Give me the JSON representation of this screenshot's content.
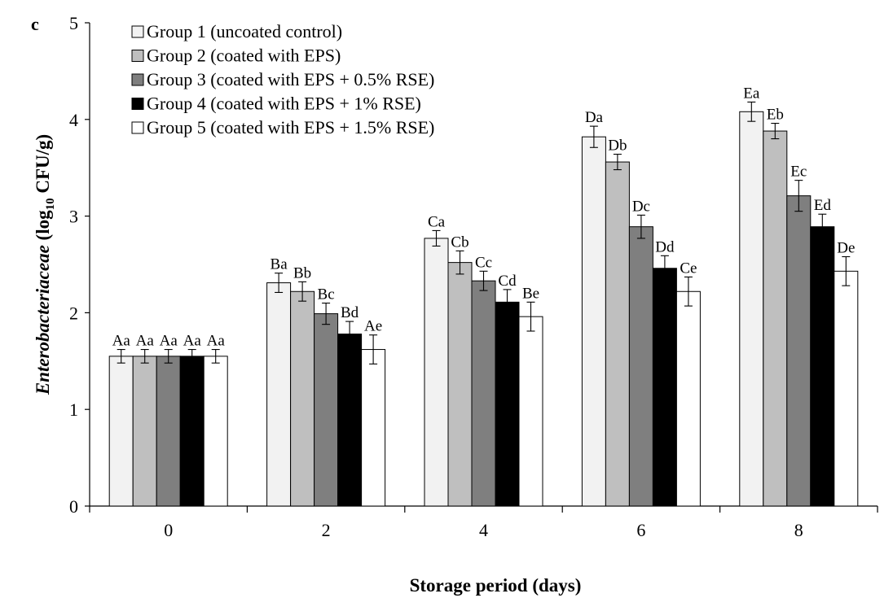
{
  "panel_label": "c",
  "chart_data": {
    "type": "bar",
    "xlabel": "Storage period (days)",
    "ylabel_italic": "Enterobacteriaceae",
    "ylabel_rest": "(log",
    "ylabel_sub": "10",
    "ylabel_end": "CFU/g)",
    "ylim": [
      0,
      5
    ],
    "yticks": [
      "0",
      "1",
      "2",
      "3",
      "4",
      "5"
    ],
    "categories": [
      "0",
      "2",
      "4",
      "6",
      "8"
    ],
    "series": [
      {
        "name": "Group 1 (uncoated control)",
        "color": "#f2f2f2",
        "values": [
          1.55,
          2.31,
          2.77,
          3.82,
          4.08
        ],
        "errors": [
          0.07,
          0.1,
          0.08,
          0.11,
          0.1
        ],
        "labels": [
          "Aa",
          "Ba",
          "Ca",
          "Da",
          "Ea"
        ]
      },
      {
        "name": "Group 2 (coated with EPS)",
        "color": "#bfbfbf",
        "values": [
          1.55,
          2.22,
          2.52,
          3.56,
          3.88
        ],
        "errors": [
          0.07,
          0.1,
          0.12,
          0.08,
          0.08
        ],
        "labels": [
          "Aa",
          "Bb",
          "Cb",
          "Db",
          "Eb"
        ]
      },
      {
        "name": "Group 3 (coated with EPS + 0.5% RSE)",
        "color": "#7f7f7f",
        "values": [
          1.55,
          1.99,
          2.33,
          2.89,
          3.21
        ],
        "errors": [
          0.07,
          0.11,
          0.1,
          0.12,
          0.16
        ],
        "labels": [
          "Aa",
          "Bc",
          "Cc",
          "Dc",
          "Ec"
        ]
      },
      {
        "name": "Group 4 (coated with EPS + 1% RSE)",
        "color": "#000000",
        "values": [
          1.55,
          1.78,
          2.11,
          2.46,
          2.89
        ],
        "errors": [
          0.07,
          0.13,
          0.13,
          0.13,
          0.13
        ],
        "labels": [
          "Aa",
          "Bd",
          "Cd",
          "Dd",
          "Ed"
        ]
      },
      {
        "name": "Group 5 (coated with EPS + 1.5% RSE)",
        "color": "#ffffff",
        "values": [
          1.55,
          1.62,
          1.96,
          2.22,
          2.43
        ],
        "errors": [
          0.07,
          0.15,
          0.15,
          0.15,
          0.15
        ],
        "labels": [
          "Aa",
          "Ae",
          "Be",
          "Ce",
          "De"
        ]
      }
    ],
    "legend_position": "top-left"
  }
}
